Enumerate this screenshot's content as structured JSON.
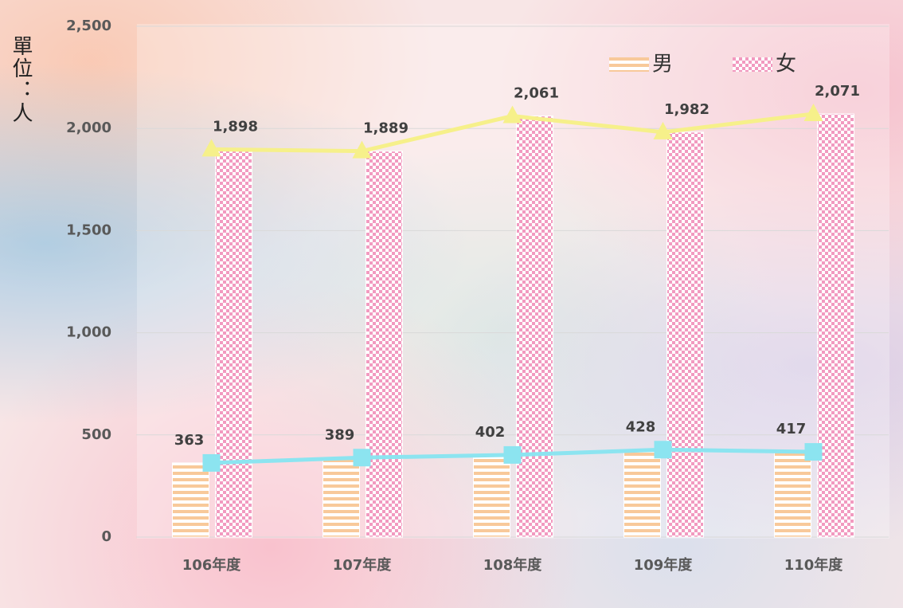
{
  "chart_data": {
    "type": "bar",
    "y_axis_label": "單位：人",
    "categories": [
      "106年度",
      "107年度",
      "108年度",
      "109年度",
      "110年度"
    ],
    "series": [
      {
        "name": "男",
        "color": "#f8c99a",
        "line_color": "#8ce4f0",
        "marker": "square",
        "values": [
          363,
          389,
          402,
          428,
          417
        ]
      },
      {
        "name": "女",
        "color": "#f29ac0",
        "line_color": "#f6f08a",
        "marker": "triangle",
        "values": [
          1898,
          1889,
          2061,
          1982,
          2071
        ],
        "value_labels": [
          "1,898",
          "1,889",
          "2,061",
          "1,982",
          "2,071"
        ]
      }
    ],
    "ylim": [
      0,
      2500
    ],
    "yticks": [
      0,
      500,
      {
        "value": 1000,
        "label": "1,000"
      },
      {
        "value": 1500,
        "label": "1,500"
      },
      {
        "value": 2000,
        "label": "2,000"
      },
      {
        "value": 2500,
        "label": "2,500"
      }
    ],
    "grid": true
  }
}
